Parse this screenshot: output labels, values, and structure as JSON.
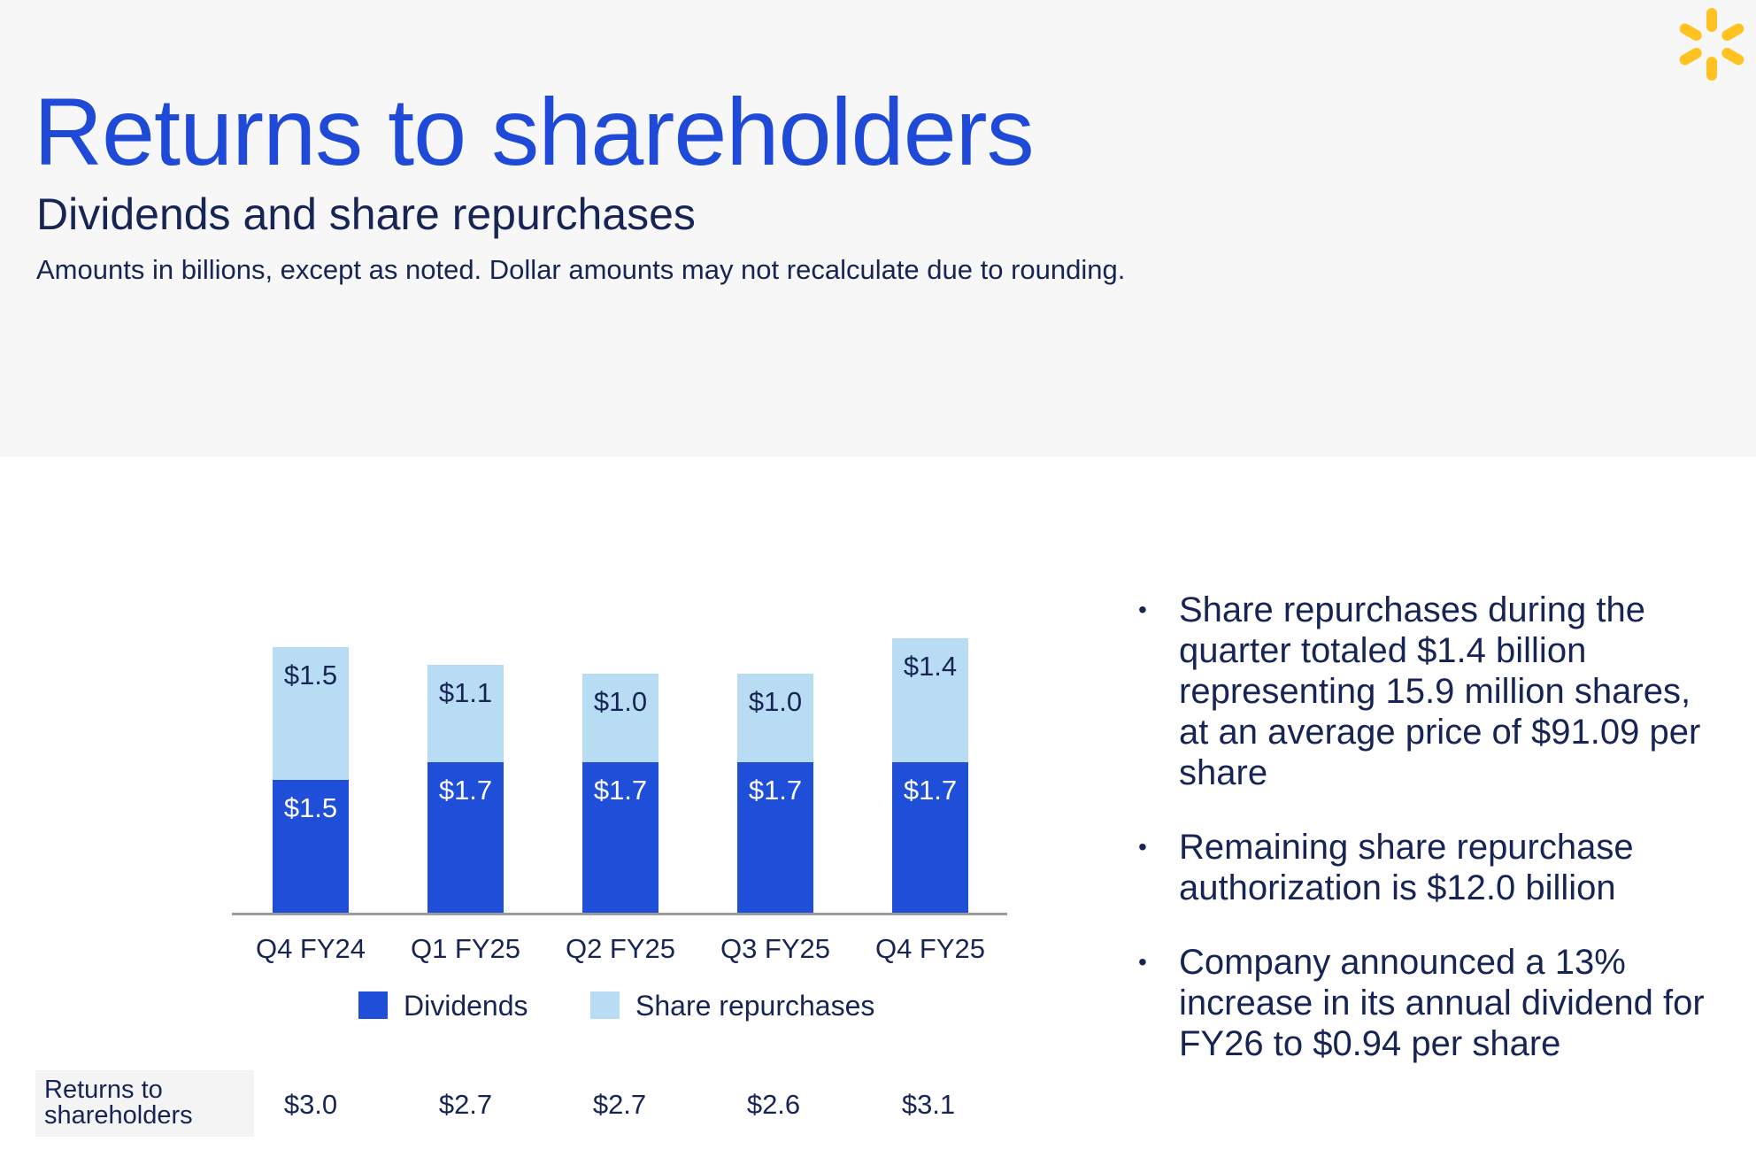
{
  "header": {
    "title": "Returns to shareholders",
    "subtitle": "Dividends and share repurchases",
    "note": "Amounts in billions, except as noted. Dollar amounts may not recalculate due to rounding.",
    "logo_icon": "spark-icon",
    "logo_color": "#FFC220"
  },
  "chart_data": {
    "type": "bar",
    "stacked": true,
    "categories": [
      "Q4 FY24",
      "Q1 FY25",
      "Q2 FY25",
      "Q3 FY25",
      "Q4 FY25"
    ],
    "series": [
      {
        "name": "Dividends",
        "color": "#1F4ED8",
        "values": [
          1.5,
          1.7,
          1.7,
          1.7,
          1.7
        ],
        "labels": [
          "$1.5",
          "$1.7",
          "$1.7",
          "$1.7",
          "$1.7"
        ]
      },
      {
        "name": "Share repurchases",
        "color": "#B8DCF4",
        "values": [
          1.5,
          1.1,
          1.0,
          1.0,
          1.4
        ],
        "labels": [
          "$1.5",
          "$1.1",
          "$1.0",
          "$1.0",
          "$1.4"
        ]
      }
    ],
    "legend_position": "bottom",
    "grid": false,
    "ylim": [
      0,
      3.2
    ]
  },
  "totals": {
    "label": "Returns to shareholders",
    "values": [
      "$3.0",
      "$2.7",
      "$2.7",
      "$2.6",
      "$3.1"
    ]
  },
  "bullets": [
    "Share repurchases during the quarter totaled $1.4 billion representing 15.9 million shares, at an average price of $91.09 per share",
    "Remaining share repurchase authorization is $12.0 billion",
    "Company announced a 13% increase in its annual dividend for FY26 to $0.94 per share"
  ],
  "bullet_char": "•"
}
